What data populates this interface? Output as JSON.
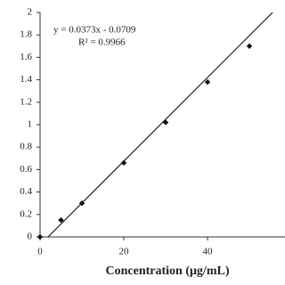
{
  "chart_data": {
    "type": "scatter",
    "x_label": "Concentration (μg/mL)",
    "x": [
      0,
      5,
      10,
      20,
      30,
      40,
      50
    ],
    "values": [
      0,
      0.15,
      0.3,
      0.66,
      1.02,
      1.38,
      1.7
    ],
    "color": "#111111",
    "xlim": [
      0,
      58.5
    ],
    "xticks": [
      0,
      20,
      40
    ],
    "ylim": [
      0,
      2
    ],
    "yticks": [
      0,
      0.2,
      0.4,
      0.6,
      0.8,
      1,
      1.2,
      1.4,
      1.6,
      1.8,
      2
    ],
    "grid": false,
    "trendline": {
      "equation": "y = 0.0373x - 0.0709",
      "r_squared_label": "R² = 0.9966",
      "slope": 0.0373,
      "intercept": -0.0709
    }
  }
}
